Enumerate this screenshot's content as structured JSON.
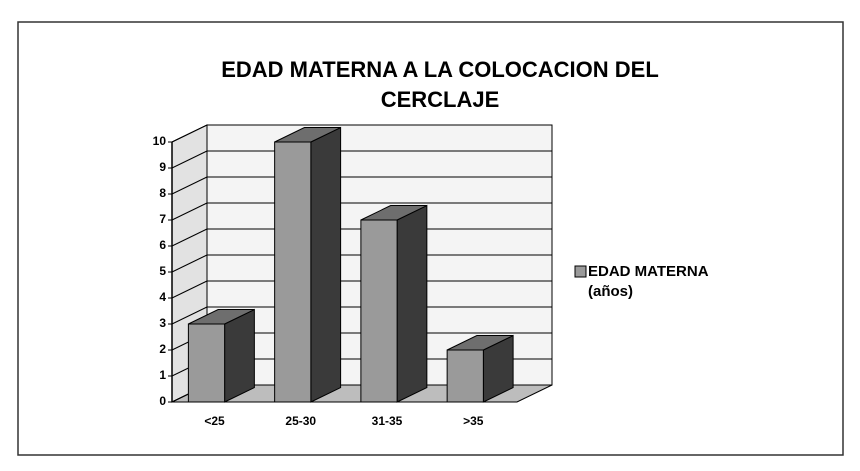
{
  "chart_data": {
    "type": "bar3d",
    "title": "EDAD MATERNA A LA COLOCACION DEL CERCLAJE",
    "categories": [
      "<25",
      "25-30",
      "31-35",
      ">35"
    ],
    "series": [
      {
        "name": "EDAD MATERNA (años)",
        "color": "#9a9a9a",
        "values": [
          3,
          10,
          7,
          2
        ]
      }
    ],
    "ylim": [
      0,
      10
    ],
    "yticks": [
      0,
      1,
      2,
      3,
      4,
      5,
      6,
      7,
      8,
      9,
      10
    ],
    "grid": true,
    "legend": "right"
  }
}
